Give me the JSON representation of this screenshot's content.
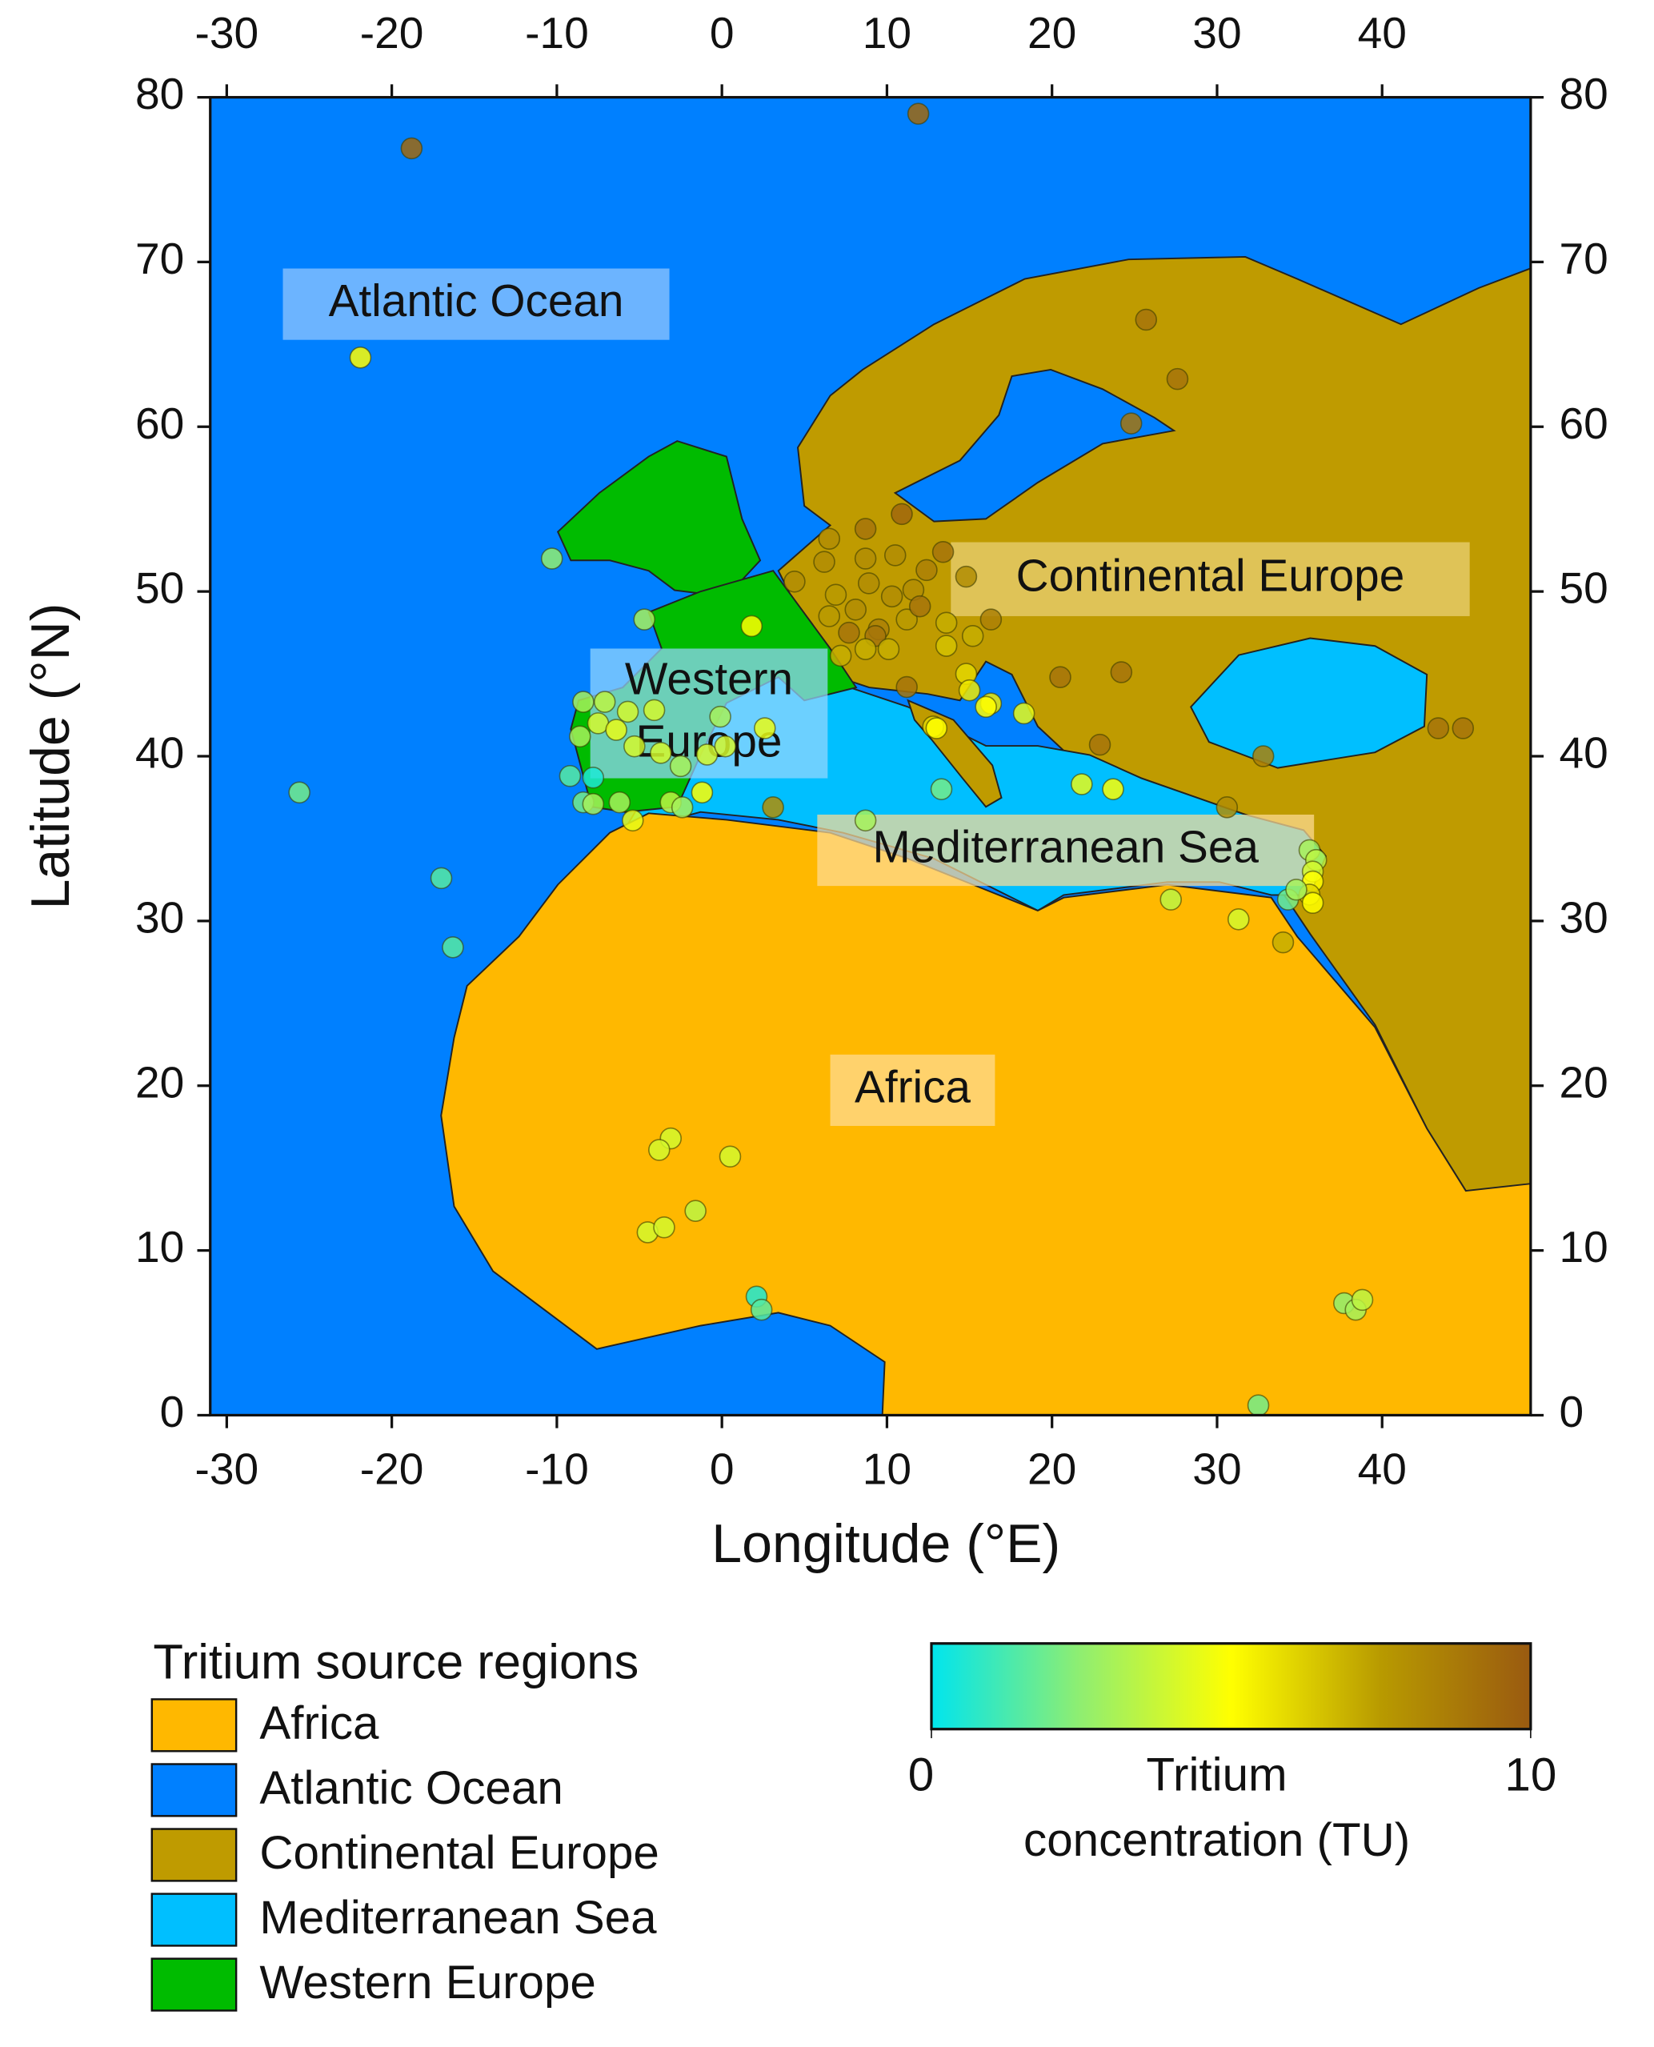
{
  "chart_data": {
    "type": "scatter",
    "xlabel": "Longitude (°E)",
    "ylabel": "Latitude (°N)",
    "xlim": [
      -31,
      49
    ],
    "ylim": [
      0,
      80
    ],
    "xticks": [
      -30,
      -20,
      -10,
      0,
      10,
      20,
      30,
      40
    ],
    "yticks": [
      0,
      10,
      20,
      30,
      40,
      50,
      60,
      70,
      80
    ],
    "regions_title": "Tritium source regions",
    "regions": [
      {
        "name": "Africa",
        "color": "#ffb800"
      },
      {
        "name": "Atlantic Ocean",
        "color": "#0080ff"
      },
      {
        "name": "Continental Europe",
        "color": "#bf9b00"
      },
      {
        "name": "Mediterranean Sea",
        "color": "#00bfff"
      },
      {
        "name": "Western Europe",
        "color": "#00bb00"
      }
    ],
    "map_labels": [
      [
        "Atlantic Ocean"
      ],
      [
        "Western",
        "Europe"
      ],
      [
        "Continental Europe"
      ],
      [
        "Mediterranean Sea"
      ],
      [
        "Africa"
      ]
    ],
    "colorbar": {
      "lim": [
        0,
        10
      ],
      "ticks": [
        0,
        10
      ],
      "label": [
        "Tritium",
        "concentration (TU)"
      ],
      "colormap": [
        "#00e5ee",
        "#90ee70",
        "#ffff00",
        "#b89a00",
        "#9a5a10"
      ]
    },
    "x": [
      -18.8,
      11.9,
      -21.9,
      25.7,
      27.6,
      24.8,
      -10.3,
      -4.7,
      1.8,
      6.5,
      8.7,
      10.9,
      13.4,
      6.2,
      8.7,
      10.5,
      12.4,
      14.8,
      4.4,
      6.9,
      8.9,
      10.3,
      11.6,
      6.5,
      8.1,
      9.5,
      7.7,
      9.3,
      11.2,
      12.0,
      13.6,
      16.3,
      7.2,
      8.7,
      10.1,
      13.6,
      15.2,
      11.2,
      20.5,
      24.2,
      43.4,
      44.9,
      22.9,
      32.8,
      30.6,
      3.1,
      14.8,
      15.0,
      16.3,
      16.0,
      18.3,
      12.8,
      13.0,
      13.3,
      21.8,
      23.7,
      8.7,
      27.2,
      31.3,
      34.0,
      35.6,
      36.0,
      35.8,
      35.8,
      35.6,
      35.8,
      34.3,
      34.8,
      -8.4,
      -7.1,
      -5.7,
      -4.1,
      -8.6,
      -7.5,
      -6.4,
      -5.3,
      -3.7,
      -2.5,
      -0.9,
      0.2,
      2.6,
      -0.1,
      -9.2,
      -7.8,
      -8.4,
      -7.8,
      -6.2,
      -5.4,
      -3.1,
      -2.4,
      -1.2,
      -25.6,
      -17.0,
      -16.3,
      2.1,
      2.4,
      32.5,
      -3.1,
      -3.8,
      0.5,
      -4.5,
      -3.5,
      -1.6,
      37.7,
      38.4,
      38.8
    ],
    "y": [
      76.9,
      79.0,
      64.2,
      66.5,
      62.9,
      60.2,
      52.0,
      48.3,
      47.9,
      53.2,
      53.8,
      54.7,
      52.4,
      51.8,
      52.0,
      52.2,
      51.3,
      50.9,
      50.6,
      49.8,
      50.5,
      49.7,
      50.1,
      48.5,
      48.9,
      47.7,
      47.5,
      47.3,
      48.3,
      49.1,
      48.1,
      48.3,
      46.1,
      46.5,
      46.5,
      46.7,
      47.3,
      44.2,
      44.8,
      45.1,
      41.7,
      41.7,
      40.7,
      40.0,
      36.9,
      36.9,
      45.0,
      44.0,
      43.2,
      43.0,
      42.6,
      41.8,
      41.7,
      38.0,
      38.3,
      38.0,
      36.1,
      31.3,
      30.1,
      28.7,
      34.3,
      33.7,
      33.0,
      32.4,
      31.6,
      31.1,
      31.3,
      31.9,
      43.3,
      43.3,
      42.7,
      42.8,
      41.2,
      42.0,
      41.6,
      40.6,
      40.2,
      39.4,
      40.1,
      40.6,
      41.7,
      42.4,
      38.8,
      38.7,
      37.2,
      37.1,
      37.2,
      36.1,
      37.2,
      36.9,
      37.8,
      37.8,
      32.6,
      28.4,
      7.2,
      6.4,
      0.6,
      16.8,
      16.1,
      15.7,
      11.1,
      11.4,
      12.4,
      6.8,
      6.4,
      7.0
    ],
    "values": [
      9.5,
      9.5,
      5,
      9,
      9,
      9,
      2.5,
      3,
      5,
      8,
      9,
      9.5,
      9,
      8,
      8,
      8,
      8.5,
      8,
      8,
      7.5,
      8,
      8,
      8,
      7.5,
      8,
      8.5,
      9,
      9,
      7.5,
      9,
      7,
      8.5,
      7,
      7,
      7,
      6.5,
      7,
      9,
      9,
      9,
      9,
      9,
      9,
      8.5,
      8,
      8,
      6,
      5.5,
      5.5,
      5,
      4.5,
      6,
      5,
      2,
      4.5,
      5,
      3,
      3.5,
      4,
      7,
      3,
      3.5,
      4,
      5,
      6,
      5,
      2,
      3,
      3,
      3.5,
      4,
      4,
      3,
      4,
      4.5,
      4,
      4,
      3,
      4,
      4,
      4.5,
      3,
      1.5,
      0.5,
      2,
      3,
      3,
      4.5,
      3.5,
      3,
      5,
      2,
      1.5,
      1.5,
      0.5,
      1.5,
      2,
      4,
      4,
      4,
      4,
      4,
      3.5,
      2.5,
      3,
      3.5
    ]
  }
}
